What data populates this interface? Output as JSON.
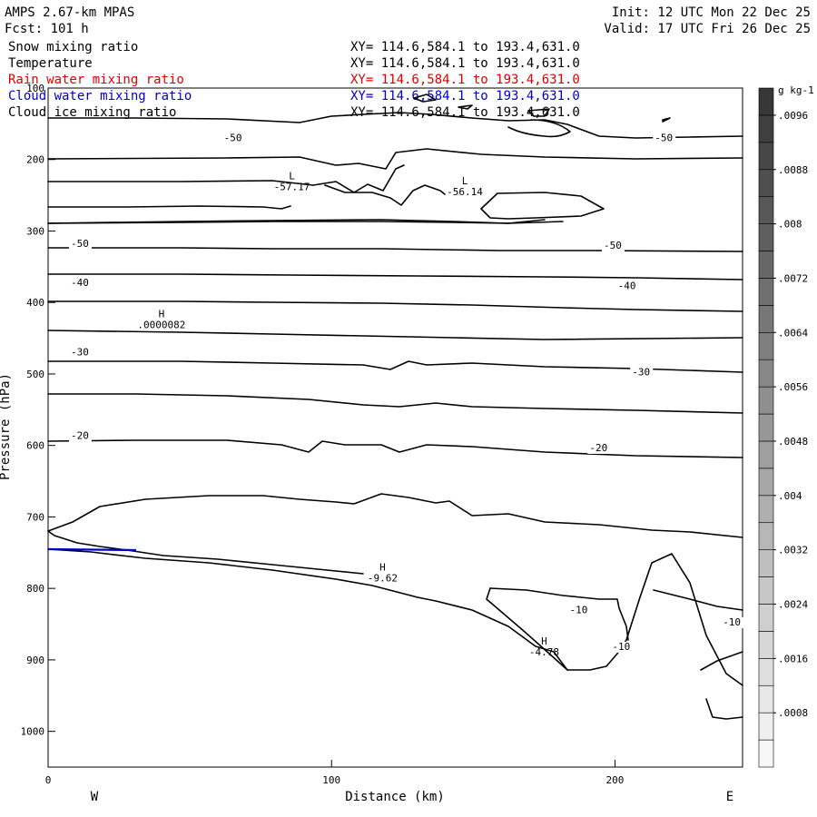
{
  "header": {
    "model": "AMPS 2.67-km MPAS",
    "fcst": "Fcst:  101 h",
    "init": "Init: 12 UTC Mon 22 Dec 25",
    "valid": "Valid: 17 UTC Fri 26 Dec 25"
  },
  "colors": {
    "rain": "#e00000",
    "cloud_water": "#0000c8",
    "contour": "#000000"
  },
  "chart_data": {
    "type": "contour-cross-section",
    "fields": [
      {
        "name": "Snow mixing ratio",
        "xy": "XY= 114.6,584.1 to 193.4,631.0",
        "color": "#000000"
      },
      {
        "name": "Temperature",
        "xy": "XY= 114.6,584.1 to 193.4,631.0",
        "color": "#000000"
      },
      {
        "name": "Rain water mixing ratio",
        "xy": "XY= 114.6,584.1 to 193.4,631.0",
        "color": "#e00000"
      },
      {
        "name": "Cloud water mixing ratio",
        "xy": "XY= 114.6,584.1 to 193.4,631.0",
        "color": "#0000c8"
      },
      {
        "name": "Cloud ice mixing ratio",
        "xy": "XY= 114.6,584.1 to 193.4,631.0",
        "color": "#000000"
      }
    ],
    "xlabel": "Distance (km)",
    "ylabel": "Pressure (hPa)",
    "xlim": [
      0,
      245
    ],
    "ylim": [
      100,
      1050
    ],
    "x_ticks": [
      0,
      100,
      200
    ],
    "y_ticks": [
      100,
      200,
      300,
      400,
      500,
      600,
      700,
      800,
      900,
      1000
    ],
    "x_end_labels": {
      "left": "W",
      "right": "E"
    },
    "isotherm_labels": [
      {
        "text": "-50",
        "x": 62,
        "p": 174
      },
      {
        "text": "-50",
        "x": 214,
        "p": 174
      },
      {
        "text": "-50",
        "x": 8,
        "p": 322
      },
      {
        "text": "-50",
        "x": 196,
        "p": 325
      },
      {
        "text": "-40",
        "x": 8,
        "p": 377
      },
      {
        "text": "-40",
        "x": 201,
        "p": 381
      },
      {
        "text": "-30",
        "x": 8,
        "p": 474
      },
      {
        "text": "-30",
        "x": 206,
        "p": 502
      },
      {
        "text": "-20",
        "x": 8,
        "p": 591
      },
      {
        "text": "-20",
        "x": 191,
        "p": 608
      },
      {
        "text": "-10",
        "x": 184,
        "p": 835
      },
      {
        "text": "-10",
        "x": 238,
        "p": 852
      },
      {
        "text": "-10",
        "x": 199,
        "p": 886
      }
    ],
    "extrema": [
      {
        "kind": "L",
        "value": "-57.17",
        "x": 86,
        "p": 243
      },
      {
        "kind": "L",
        "value": "-56.14",
        "x": 147,
        "p": 250
      },
      {
        "kind": "H",
        "value": ".0000082",
        "x": 40,
        "p": 436
      },
      {
        "kind": "H",
        "value": "-9.62",
        "x": 118,
        "p": 790
      },
      {
        "kind": "H",
        "value": "-4.78",
        "x": 175,
        "p": 894
      }
    ],
    "colorbar": {
      "units": "g kg-1",
      "ticks": [
        ".0096",
        ".0088",
        ".008",
        ".0072",
        ".0064",
        ".0056",
        ".0048",
        ".004",
        ".0032",
        ".0024",
        ".0016",
        ".0008"
      ],
      "min": 0,
      "max": 0.01,
      "step": 0.0004
    }
  }
}
